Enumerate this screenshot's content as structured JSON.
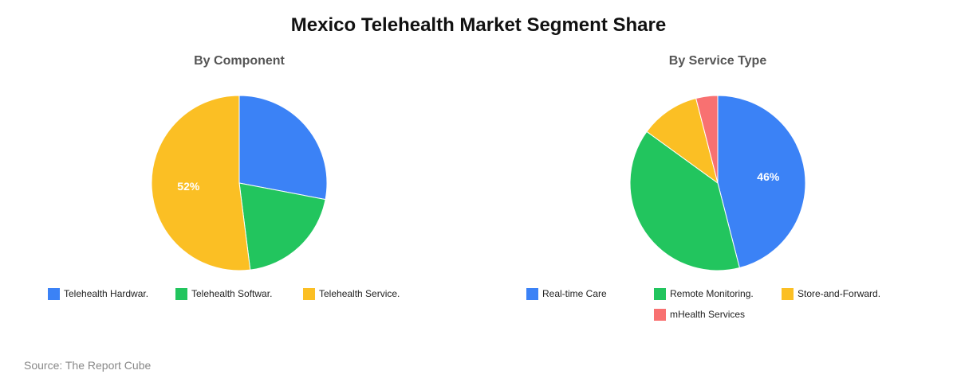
{
  "title": "Mexico Telehealth Market Segment Share",
  "source": "Source: The Report Cube",
  "charts": [
    {
      "subtitle": "By Component",
      "legend": [
        {
          "label": "Telehealth Hardwar.",
          "color": "#3b82f6"
        },
        {
          "label": "Telehealth Softwar.",
          "color": "#22c55e"
        },
        {
          "label": "Telehealth Service.",
          "color": "#fbbf24"
        }
      ],
      "label_shown": "52%"
    },
    {
      "subtitle": "By Service Type",
      "legend": [
        {
          "label": "Real-time Care",
          "color": "#3b82f6"
        },
        {
          "label": "Remote Monitoring.",
          "color": "#22c55e"
        },
        {
          "label": "Store-and-Forward.",
          "color": "#fbbf24"
        },
        {
          "label": "mHealth Services",
          "color": "#f87171"
        }
      ],
      "label_shown": "46%"
    }
  ],
  "chart_data": [
    {
      "type": "pie",
      "title": "By Component",
      "categories": [
        "Telehealth Hardwar.",
        "Telehealth Softwar.",
        "Telehealth Service."
      ],
      "values": [
        28,
        20,
        52
      ],
      "colors": [
        "#3b82f6",
        "#22c55e",
        "#fbbf24"
      ],
      "data_labels": {
        "Telehealth Service.": "52%"
      },
      "legend_position": "bottom"
    },
    {
      "type": "pie",
      "title": "By Service Type",
      "categories": [
        "Real-time Care",
        "Remote Monitoring.",
        "Store-and-Forward.",
        "mHealth Services"
      ],
      "values": [
        46,
        39,
        11,
        4
      ],
      "colors": [
        "#3b82f6",
        "#22c55e",
        "#fbbf24",
        "#f87171"
      ],
      "data_labels": {
        "Real-time Care": "46%"
      },
      "legend_position": "bottom"
    }
  ]
}
